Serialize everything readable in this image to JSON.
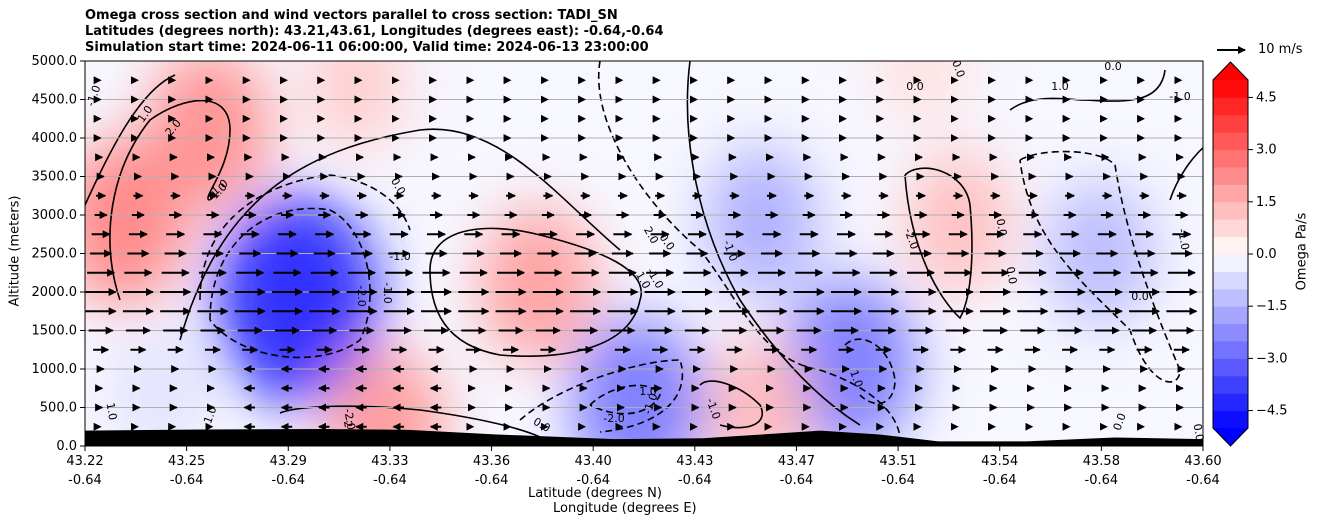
{
  "figure": {
    "title_lines": [
      "Omega cross section and wind vectors parallel to cross section: TADI_SN",
      "Latitudes (degrees north): 43.21,43.61, Longitudes (degrees east): -0.64,-0.64",
      "Simulation start time: 2024-06-11 06:00:00, Valid time: 2024-06-13 23:00:00"
    ],
    "xlabel_lat": "Latitude (degrees N)",
    "xlabel_lon": "Longitude (degrees E)",
    "ylabel": "Altitude (meters)",
    "colorbar_label": "Omega Pa/s",
    "vector_key_label": "10 m/s"
  },
  "chart_data": {
    "type": "heatmap",
    "x_lat_ticks": [
      "43.22",
      "43.25",
      "43.29",
      "43.33",
      "43.36",
      "43.40",
      "43.43",
      "43.47",
      "43.51",
      "43.54",
      "43.58",
      "43.60"
    ],
    "x_lon_ticks": [
      "-0.64",
      "-0.64",
      "-0.64",
      "-0.64",
      "-0.64",
      "-0.64",
      "-0.64",
      "-0.64",
      "-0.64",
      "-0.64",
      "-0.64",
      "-0.64"
    ],
    "y_ticks": [
      "0.0",
      "500.0",
      "1000.0",
      "1500.0",
      "2000.0",
      "2500.0",
      "3000.0",
      "3500.0",
      "4000.0",
      "4500.0",
      "5000.0"
    ],
    "ylim": [
      0,
      5000
    ],
    "grid": "horizontal",
    "colorbar_ticks": [
      "4.5",
      "3.0",
      "1.5",
      "0.0",
      "−1.5",
      "−3.0",
      "−4.5"
    ],
    "colorbar_range": [
      -5,
      5
    ],
    "colormap": {
      "negative": "#0000ff",
      "zero": "#ffffff",
      "positive": "#ff0000"
    },
    "omega_regions": [
      {
        "lat": 43.233,
        "alt": 2900,
        "value": 2.4
      },
      {
        "lat": 43.262,
        "alt": 4100,
        "value": 2.2
      },
      {
        "lat": 43.292,
        "alt": 1900,
        "value": -4.2
      },
      {
        "lat": 43.245,
        "alt": 700,
        "value": -0.6
      },
      {
        "lat": 43.374,
        "alt": 2100,
        "value": 1.9
      },
      {
        "lat": 43.322,
        "alt": 250,
        "value": 2.0
      },
      {
        "lat": 43.408,
        "alt": 560,
        "value": -2.6
      },
      {
        "lat": 43.45,
        "alt": 2900,
        "value": -1.6
      },
      {
        "lat": 43.48,
        "alt": 1050,
        "value": -2.6
      },
      {
        "lat": 43.517,
        "alt": 2900,
        "value": 1.3
      },
      {
        "lat": 43.565,
        "alt": 2500,
        "value": -1.4
      },
      {
        "lat": 43.449,
        "alt": 480,
        "value": 1.4
      },
      {
        "lat": 43.312,
        "alt": 4700,
        "value": 1.0
      },
      {
        "lat": 43.505,
        "alt": 4950,
        "value": 0.6
      }
    ],
    "contour_labels": [
      "-1.0",
      "1.0",
      "2.0",
      "1.0",
      "0.0",
      "-2.0",
      "-1.0",
      "0.0",
      "-1.0",
      "-2.0",
      "-1.0",
      "2.0",
      "1.0",
      "0.0",
      "1.0",
      "-1.0",
      "-2.0",
      "-1.0",
      "-1.0",
      "1.0",
      "0.0",
      "0.0",
      "0.0",
      "-1.0",
      "0.0",
      "0.0",
      "0.0",
      "-1.0",
      "-2.0",
      "1.0",
      "-1.0",
      "-2.0",
      "1.0",
      "0.0",
      "0.0",
      "-1.0"
    ],
    "wind_profile": [
      {
        "alt": 250,
        "speed": 2
      },
      {
        "alt": 500,
        "speed": 3
      },
      {
        "alt": 750,
        "speed": 3
      },
      {
        "alt": 1000,
        "speed": 4
      },
      {
        "alt": 1250,
        "speed": 7
      },
      {
        "alt": 1500,
        "speed": 10
      },
      {
        "alt": 1750,
        "speed": 12
      },
      {
        "alt": 2000,
        "speed": 12
      },
      {
        "alt": 2250,
        "speed": 11
      },
      {
        "alt": 2500,
        "speed": 9
      },
      {
        "alt": 2750,
        "speed": 8
      },
      {
        "alt": 3000,
        "speed": 6
      },
      {
        "alt": 3250,
        "speed": 5
      },
      {
        "alt": 3500,
        "speed": 4
      },
      {
        "alt": 3750,
        "speed": 3
      },
      {
        "alt": 4000,
        "speed": 2
      },
      {
        "alt": 4250,
        "speed": 2
      },
      {
        "alt": 4500,
        "speed": 2
      },
      {
        "alt": 4750,
        "speed": 2
      }
    ],
    "vector_key_speed": 10,
    "terrain": [
      {
        "lat": 43.22,
        "alt": 200
      },
      {
        "lat": 43.26,
        "alt": 215
      },
      {
        "lat": 43.3,
        "alt": 220
      },
      {
        "lat": 43.33,
        "alt": 210
      },
      {
        "lat": 43.36,
        "alt": 150
      },
      {
        "lat": 43.4,
        "alt": 90
      },
      {
        "lat": 43.43,
        "alt": 100
      },
      {
        "lat": 43.45,
        "alt": 150
      },
      {
        "lat": 43.47,
        "alt": 200
      },
      {
        "lat": 43.49,
        "alt": 150
      },
      {
        "lat": 43.51,
        "alt": 60
      },
      {
        "lat": 43.54,
        "alt": 60
      },
      {
        "lat": 43.57,
        "alt": 110
      },
      {
        "lat": 43.6,
        "alt": 90
      }
    ]
  }
}
